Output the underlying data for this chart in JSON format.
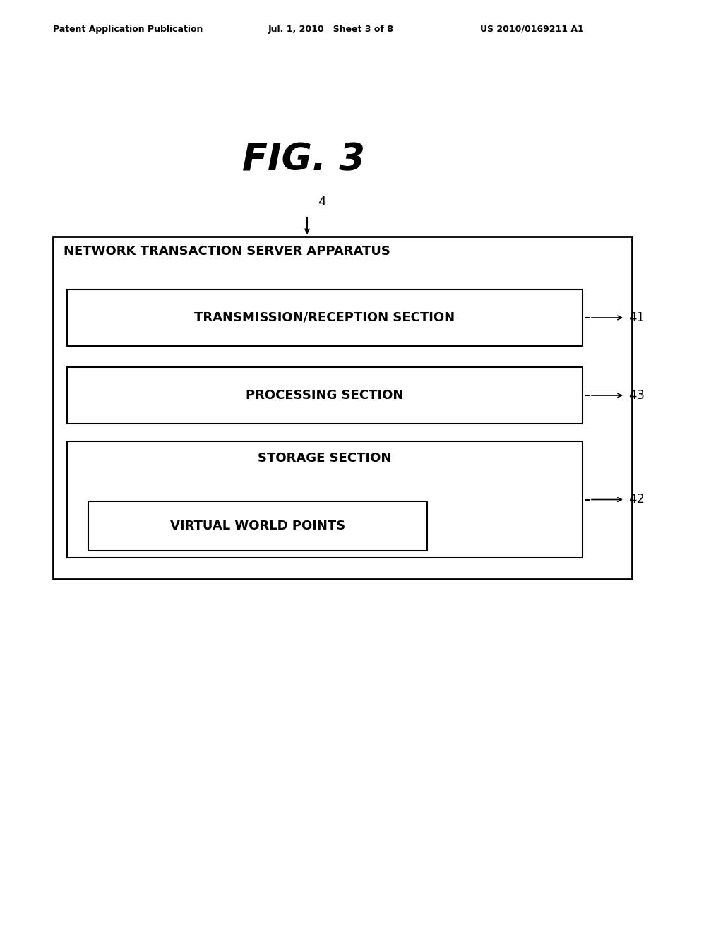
{
  "background_color": "#ffffff",
  "header_left": "Patent Application Publication",
  "header_mid": "Jul. 1, 2010   Sheet 3 of 8",
  "header_right": "US 2010/0169211 A1",
  "fig_label": "FIG. 3",
  "outer_box_label": "NETWORK TRANSACTION SERVER APPARATUS",
  "outer_box_ref": "4",
  "boxes": [
    {
      "label": "TRANSMISSION/RECEPTION SECTION",
      "ref": "41"
    },
    {
      "label": "PROCESSING SECTION",
      "ref": "43"
    },
    {
      "label": "STORAGE SECTION",
      "ref": "42",
      "inner_label": "VIRTUAL WORLD POINTS"
    }
  ]
}
